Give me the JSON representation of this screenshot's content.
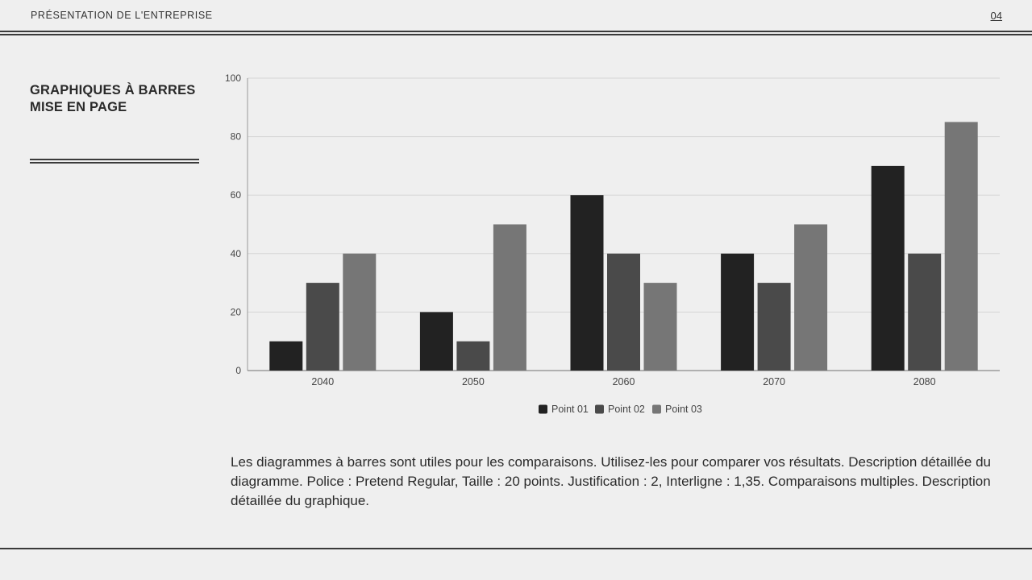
{
  "header": {
    "title": "PRÉSENTATION DE L'ENTREPRISE",
    "page_number": "04"
  },
  "sidebar": {
    "title_line1": "GRAPHIQUES À BARRES",
    "title_line2": "MISE EN PAGE"
  },
  "description": "Les diagrammes à barres sont utiles pour les comparaisons. Utilisez-les pour comparer vos résultats. Description détaillée du diagramme. Police : Pretend Regular, Taille : 20 points. Justification : 2, Interligne : 1,35. Comparaisons multiples. Description détaillée du graphique.",
  "chart_data": {
    "type": "bar",
    "categories": [
      "2040",
      "2050",
      "2060",
      "2070",
      "2080"
    ],
    "series": [
      {
        "name": "Point 01",
        "values": [
          10,
          20,
          60,
          40,
          70
        ],
        "color": "#222222"
      },
      {
        "name": "Point 02",
        "values": [
          30,
          10,
          40,
          30,
          40
        ],
        "color": "#4a4a4a"
      },
      {
        "name": "Point 03",
        "values": [
          40,
          50,
          30,
          50,
          85
        ],
        "color": "#767676"
      }
    ],
    "ylim": [
      0,
      100
    ],
    "yticks": [
      0,
      20,
      40,
      60,
      80,
      100
    ],
    "grid": true,
    "legend_position": "bottom-center"
  }
}
